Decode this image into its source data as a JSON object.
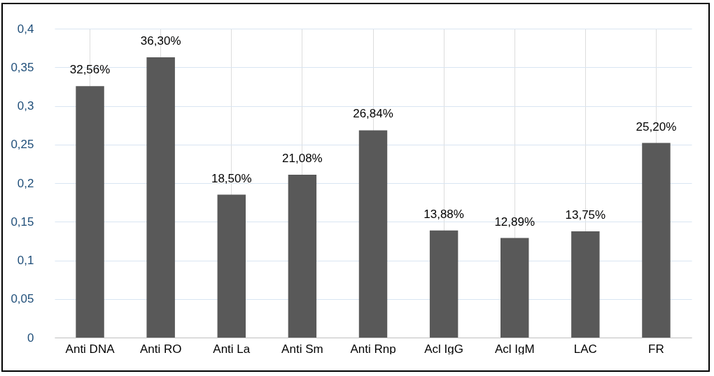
{
  "chart_data": {
    "type": "bar",
    "categories": [
      "Anti DNA",
      "Anti RO",
      "Anti La",
      "Anti Sm",
      "Anti Rnp",
      "Acl IgG",
      "Acl IgM",
      "LAC",
      "FR"
    ],
    "values": [
      0.3256,
      0.363,
      0.185,
      0.2108,
      0.2684,
      0.1388,
      0.1289,
      0.1375,
      0.252
    ],
    "value_labels": [
      "32,56%",
      "36,30%",
      "18,50%",
      "21,08%",
      "26,84%",
      "13,88%",
      "12,89%",
      "13,75%",
      "25,20%"
    ],
    "color": "#595959",
    "ylim": [
      0,
      0.4
    ],
    "yticks": [
      0,
      {
        "value": 0.05,
        "label": "0,05"
      },
      {
        "value": 0.1,
        "label": "0,1"
      },
      {
        "value": 0.15,
        "label": "0,15"
      },
      {
        "value": 0.2,
        "label": "0,2"
      },
      {
        "value": 0.25,
        "label": "0,25"
      },
      {
        "value": 0.3,
        "label": "0,3"
      },
      {
        "value": 0.35,
        "label": "0,35"
      },
      {
        "value": 0.4,
        "label": "0,4"
      }
    ],
    "grid": true
  }
}
